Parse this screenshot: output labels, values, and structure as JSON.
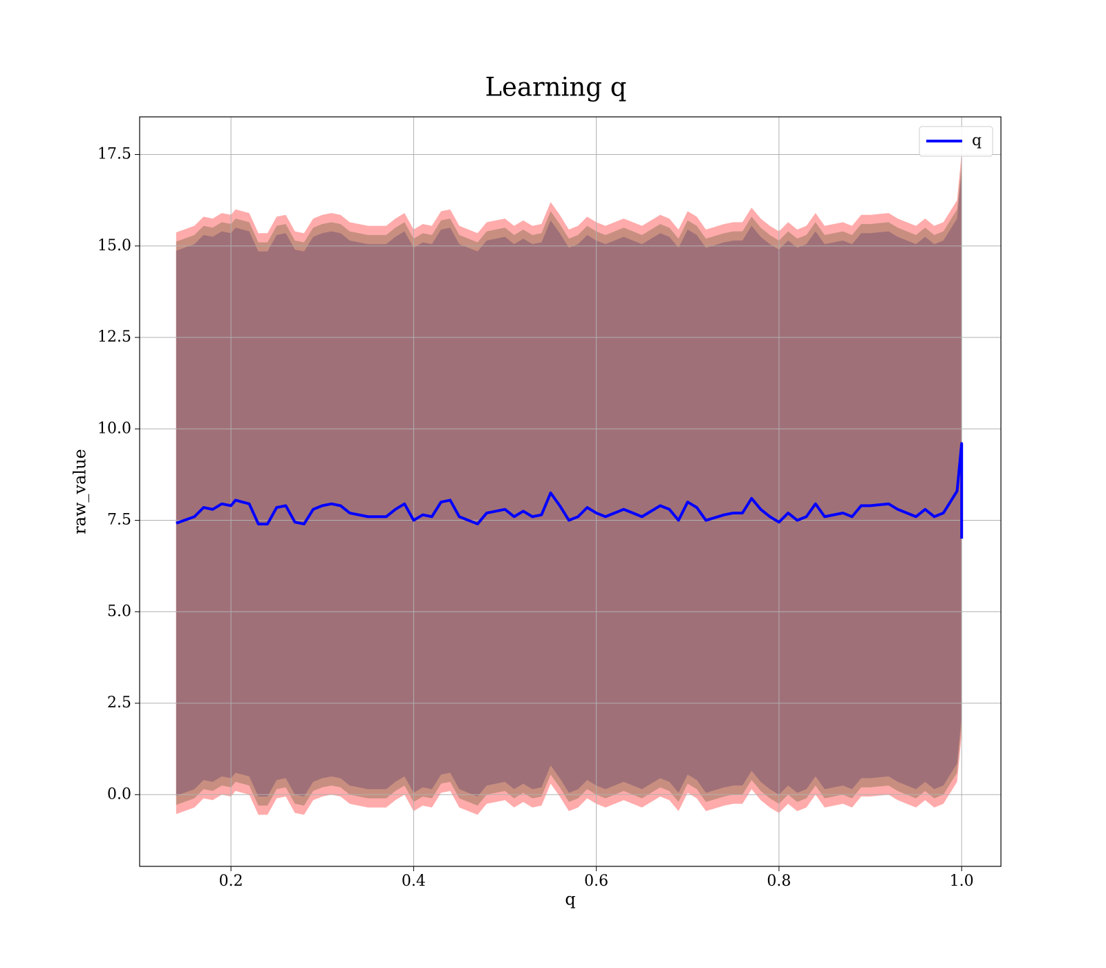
{
  "chart_data": {
    "type": "line",
    "title": "Learning q",
    "xlabel": "q",
    "ylabel": "raw_value",
    "x": [
      0.14,
      0.16,
      0.17,
      0.18,
      0.19,
      0.2,
      0.205,
      0.22,
      0.23,
      0.24,
      0.25,
      0.26,
      0.27,
      0.28,
      0.29,
      0.3,
      0.31,
      0.32,
      0.33,
      0.35,
      0.37,
      0.38,
      0.39,
      0.4,
      0.41,
      0.42,
      0.43,
      0.44,
      0.45,
      0.47,
      0.48,
      0.5,
      0.51,
      0.52,
      0.53,
      0.54,
      0.55,
      0.56,
      0.57,
      0.58,
      0.59,
      0.6,
      0.61,
      0.63,
      0.65,
      0.67,
      0.68,
      0.69,
      0.7,
      0.71,
      0.72,
      0.74,
      0.75,
      0.76,
      0.77,
      0.78,
      0.79,
      0.8,
      0.81,
      0.82,
      0.83,
      0.84,
      0.85,
      0.87,
      0.88,
      0.89,
      0.9,
      0.92,
      0.93,
      0.95,
      0.96,
      0.97,
      0.98,
      0.99,
      0.995,
      1.0,
      1.0
    ],
    "series": [
      {
        "name": "q",
        "color": "#0000ff",
        "values": [
          7.42,
          7.6,
          7.85,
          7.8,
          7.95,
          7.9,
          8.05,
          7.95,
          7.4,
          7.4,
          7.85,
          7.9,
          7.45,
          7.4,
          7.8,
          7.9,
          7.95,
          7.9,
          7.7,
          7.6,
          7.6,
          7.8,
          7.95,
          7.5,
          7.65,
          7.6,
          8.0,
          8.05,
          7.6,
          7.4,
          7.7,
          7.8,
          7.6,
          7.75,
          7.6,
          7.65,
          8.25,
          7.9,
          7.5,
          7.6,
          7.85,
          7.7,
          7.6,
          7.8,
          7.6,
          7.9,
          7.8,
          7.5,
          8.0,
          7.85,
          7.5,
          7.65,
          7.7,
          7.7,
          8.1,
          7.8,
          7.6,
          7.45,
          7.7,
          7.5,
          7.6,
          7.95,
          7.6,
          7.7,
          7.6,
          7.9,
          7.9,
          7.95,
          7.8,
          7.6,
          7.8,
          7.6,
          7.7,
          8.1,
          8.3,
          9.6,
          7.0
        ]
      }
    ],
    "bands": [
      {
        "halfwidth": 7.95,
        "color": "#ffabab"
      },
      {
        "halfwidth": 7.7,
        "color": "#c88f80"
      },
      {
        "halfwidth": 7.45,
        "color": "#a07078"
      }
    ],
    "xlim": [
      0.1,
      1.043
    ],
    "ylim": [
      -1.96,
      18.53
    ],
    "xticks": [
      {
        "value": 0.2,
        "label": "0.2"
      },
      {
        "value": 0.4,
        "label": "0.4"
      },
      {
        "value": 0.6,
        "label": "0.6"
      },
      {
        "value": 0.8,
        "label": "0.8"
      },
      {
        "value": 1.0,
        "label": "1.0"
      }
    ],
    "yticks": [
      {
        "value": 0,
        "label": "0.0"
      },
      2.5,
      {
        "value": 5,
        "label": "5.0"
      },
      7.5,
      {
        "value": 10,
        "label": "10.0"
      },
      12.5,
      {
        "value": 15,
        "label": "15.0"
      },
      17.5
    ],
    "grid": true,
    "legend": "upper right"
  }
}
